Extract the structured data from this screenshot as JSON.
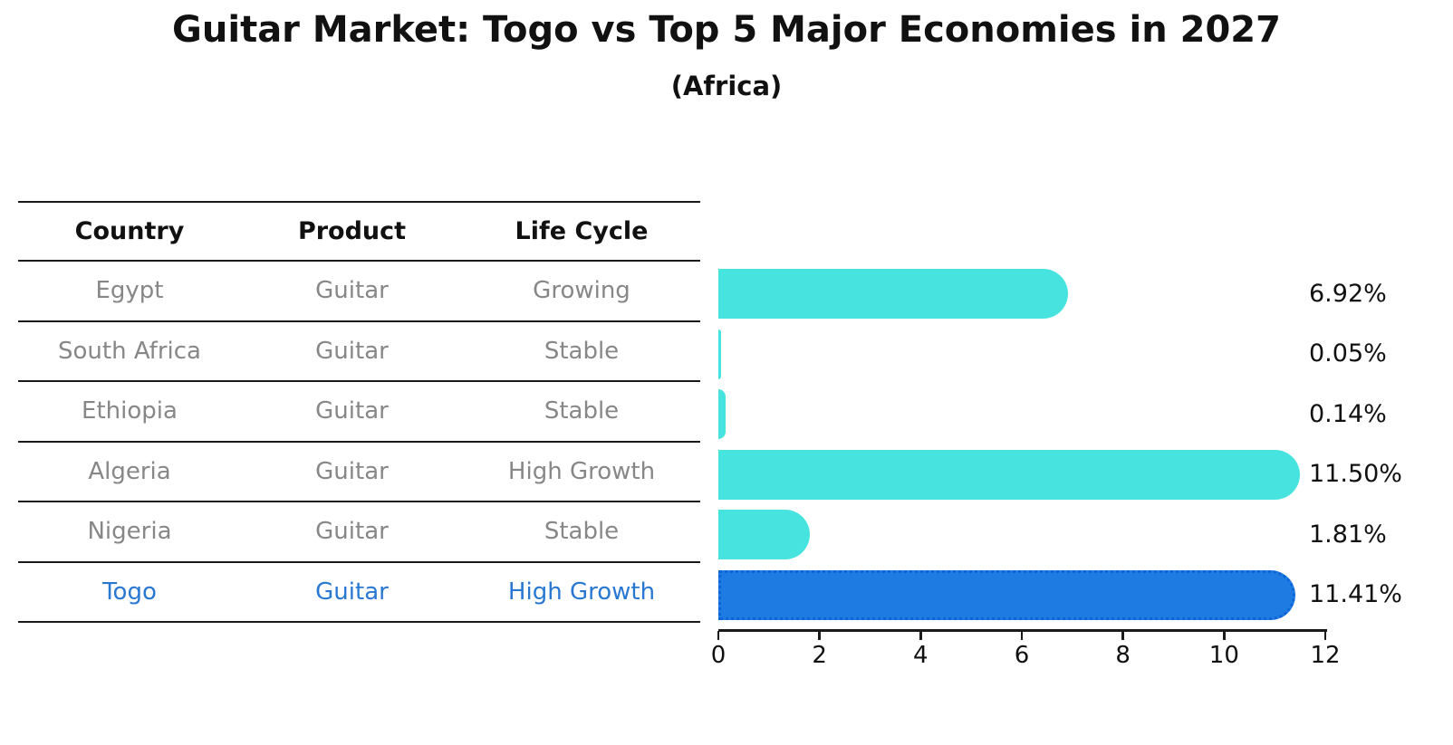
{
  "title": "Guitar Market: Togo vs Top 5 Major Economies in 2027",
  "subtitle": "(Africa)",
  "table": {
    "headers": [
      "Country",
      "Product",
      "Life Cycle"
    ],
    "rows": [
      {
        "country": "Egypt",
        "product": "Guitar",
        "life_cycle": "Growing",
        "highlight": false
      },
      {
        "country": "South Africa",
        "product": "Guitar",
        "life_cycle": "Stable",
        "highlight": false
      },
      {
        "country": "Ethiopia",
        "product": "Guitar",
        "life_cycle": "Stable",
        "highlight": false
      },
      {
        "country": "Algeria",
        "product": "Guitar",
        "life_cycle": "High Growth",
        "highlight": false
      },
      {
        "country": "Nigeria",
        "product": "Guitar",
        "life_cycle": "Stable",
        "highlight": false
      },
      {
        "country": "Togo",
        "product": "Guitar",
        "life_cycle": "High Growth",
        "highlight": true
      }
    ]
  },
  "chart_data": {
    "type": "bar",
    "orientation": "horizontal",
    "title": "Guitar Market: Togo vs Top 5 Major Economies in 2027",
    "subtitle": "(Africa)",
    "categories": [
      "Egypt",
      "South Africa",
      "Ethiopia",
      "Algeria",
      "Nigeria",
      "Togo"
    ],
    "values": [
      6.92,
      0.05,
      0.14,
      11.5,
      1.81,
      11.41
    ],
    "value_labels": [
      "6.92%",
      "0.05%",
      "0.14%",
      "11.50%",
      "1.81%",
      "11.41%"
    ],
    "unit": "%",
    "xlim": [
      0,
      12
    ],
    "xticks": [
      0,
      2,
      4,
      6,
      8,
      10,
      12
    ],
    "grid": false,
    "legend": false,
    "highlight_category": "Togo"
  },
  "colors": {
    "bar_default": "#47E4DF",
    "bar_highlight": "#1E7BE1",
    "bar_highlight_border": "#0D63D8",
    "table_text": "#878787",
    "highlight_text": "#2878D2",
    "heading_text": "#111111",
    "axis": "#1a1a1a"
  }
}
